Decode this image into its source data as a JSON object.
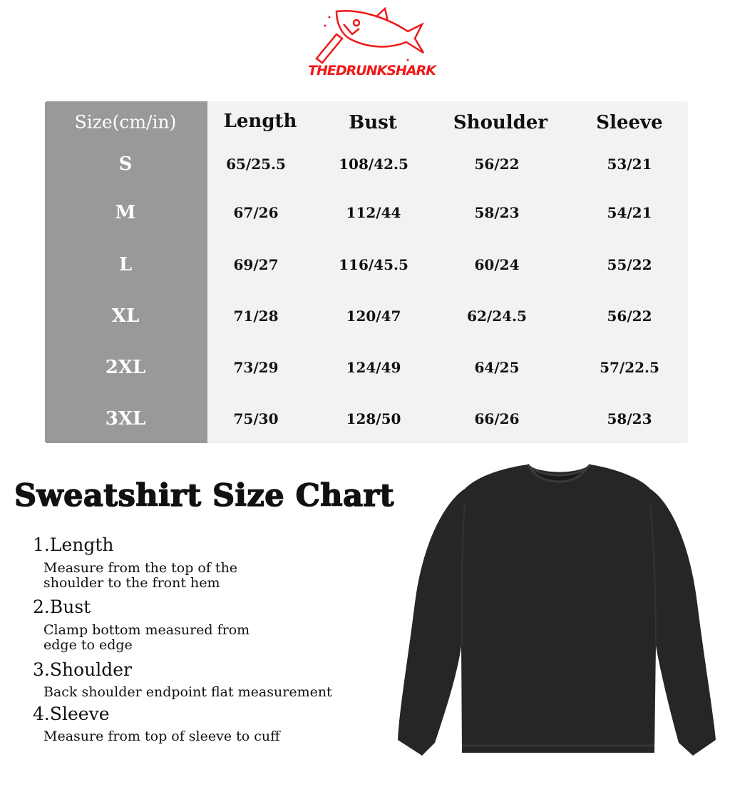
{
  "brand": {
    "logo_text": "THEDRUNKSHARK",
    "color": "#f01818"
  },
  "table": {
    "headers": [
      "Size(cm/in)",
      "Length",
      "Bust",
      "Shoulder",
      "Sleeve"
    ],
    "rows": [
      {
        "size": "S",
        "length": "65/25.5",
        "bust": "108/42.5",
        "shoulder": "56/22",
        "sleeve": "53/21"
      },
      {
        "size": "M",
        "length": "67/26",
        "bust": "112/44",
        "shoulder": "58/23",
        "sleeve": "54/21"
      },
      {
        "size": "L",
        "length": "69/27",
        "bust": "116/45.5",
        "shoulder": "60/24",
        "sleeve": "55/22"
      },
      {
        "size": "XL",
        "length": "71/28",
        "bust": "120/47",
        "shoulder": "62/24.5",
        "sleeve": "56/22"
      },
      {
        "size": "2XL",
        "length": "73/29",
        "bust": "124/49",
        "shoulder": "64/25",
        "sleeve": "57/22.5"
      },
      {
        "size": "3XL",
        "length": "75/30",
        "bust": "128/50",
        "shoulder": "66/26",
        "sleeve": "58/23"
      }
    ],
    "size_column_color": "#999999",
    "background_color": "#f2f2f2"
  },
  "guide": {
    "title": "Sweatshirt Size Chart",
    "items": [
      {
        "heading": "1.Length",
        "description": [
          "Measure from the top of the",
          "shoulder to the front hem"
        ]
      },
      {
        "heading": "2.Bust",
        "description": [
          "Clamp bottom measured from",
          "edge to edge"
        ]
      },
      {
        "heading": "3.Shoulder",
        "description": [
          "Back shoulder endpoint flat measurement"
        ]
      },
      {
        "heading": "4.Sleeve",
        "description": [
          "Measure from top of sleeve to cuff"
        ]
      }
    ]
  },
  "product_image": "black-sweatshirt"
}
